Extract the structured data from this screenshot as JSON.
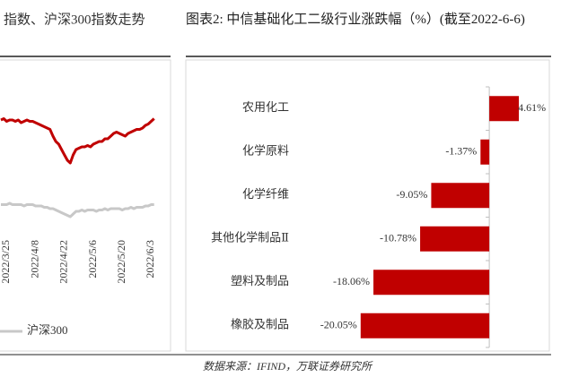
{
  "chart_data": [
    {
      "type": "line",
      "title": "指数、沪深300指数走势",
      "categories": [
        null,
        null,
        "2022/3/25",
        null,
        null,
        null,
        null,
        null,
        null,
        null,
        null,
        null,
        "2022/4/8",
        null,
        null,
        null,
        null,
        null,
        null,
        null,
        null,
        null,
        "2022/4/22",
        null,
        null,
        null,
        null,
        null,
        null,
        null,
        null,
        null,
        "2022/5/6",
        null,
        null,
        null,
        null,
        null,
        null,
        null,
        null,
        null,
        "2022/5/20",
        null,
        null,
        null,
        null,
        null,
        null,
        null,
        null,
        null,
        "2022/6/3",
        null
      ],
      "series": [
        {
          "color": "#c00000",
          "values": [
            84,
            85,
            83,
            84,
            84,
            83,
            84,
            82,
            83,
            84,
            83,
            83,
            82,
            81,
            80,
            79,
            78,
            77,
            72,
            68,
            66,
            62,
            58,
            54,
            52,
            58,
            62,
            63,
            64,
            64,
            65,
            64,
            66,
            67,
            68,
            68,
            70,
            70,
            72,
            74,
            75,
            74,
            73,
            72,
            74,
            75,
            76,
            77,
            77,
            78,
            80,
            81,
            83,
            85
          ]
        },
        {
          "name": "沪深300",
          "color": "#c8c8c8",
          "values": [
            21,
            21,
            21,
            22,
            21,
            21,
            21,
            21,
            20,
            21,
            21,
            21,
            20,
            20,
            20,
            19,
            19,
            18,
            18,
            17,
            16,
            15,
            14,
            13,
            12,
            14,
            16,
            16,
            17,
            16,
            17,
            17,
            17,
            16,
            17,
            17,
            18,
            17,
            18,
            18,
            18,
            18,
            17,
            18,
            18,
            19,
            18,
            19,
            19,
            19,
            20,
            20,
            21,
            21
          ]
        }
      ],
      "ylim": [
        0,
        100
      ]
    },
    {
      "type": "bar",
      "orientation": "horizontal",
      "title": "图表2: 中信基础化工二级行业涨跌幅（%）(截至2022-6-6)",
      "categories": [
        "农用化工",
        "化学原料",
        "化学纤维",
        "其他化学制品Ⅱ",
        "塑料及制品",
        "橡胶及制品"
      ],
      "values": [
        4.61,
        -1.37,
        -9.05,
        -10.78,
        -18.06,
        -20.05
      ],
      "value_labels": [
        "4.61%",
        "-1.37%",
        "-9.05%",
        "-10.78%",
        "-18.06%",
        "-20.05%"
      ],
      "color": "#c00000",
      "xlim": [
        -21,
        6
      ]
    }
  ],
  "source": "数据来源：IFIND，万联证券研究所"
}
